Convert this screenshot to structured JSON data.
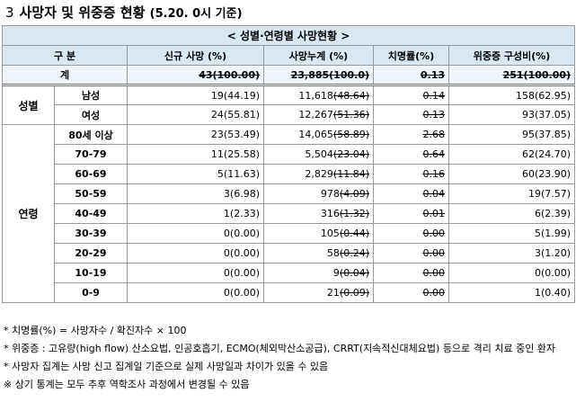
{
  "title": {
    "number": "3",
    "text": "사망자 및 위중증 현황",
    "date": "(5.20. 0시 기준)"
  },
  "table": {
    "caption": "< 성별·연령별 사망현황 >",
    "headers": [
      "구 분",
      "신규 사망 (%)",
      "사망누계 (%)",
      "치명률(%)",
      "위중증 구성비(%)"
    ],
    "total": {
      "label": "계",
      "new_deaths": "43(100.00)",
      "cum_deaths": "23,885(100.0)",
      "fatality": "0.13",
      "critical": "251(100.00)"
    },
    "sex_group": "성별",
    "sex_rows": [
      {
        "label": "남성",
        "new_a": "19",
        "new_b": "(44.19)",
        "cum_a": "11,618",
        "cum_b": "(48.64)",
        "fatality": "0.14",
        "critical": "158(62.95)"
      },
      {
        "label": "여성",
        "new_a": "24",
        "new_b": "(55.81)",
        "cum_a": "12,267",
        "cum_b": "(51.36)",
        "fatality": "0.13",
        "critical": "93(37.05)"
      }
    ],
    "age_group": "연령",
    "age_rows": [
      {
        "label": "80세 이상",
        "new_a": "23",
        "new_b": "(53.49)",
        "cum_a": "14,065",
        "cum_b": "(58.89)",
        "fatality": "2.68",
        "critical": "95(37.85)"
      },
      {
        "label": "70-79",
        "new_a": "11",
        "new_b": "(25.58)",
        "cum_a": "5,504",
        "cum_b": "(23.04)",
        "fatality": "0.64",
        "critical": "62(24.70)"
      },
      {
        "label": "60-69",
        "new_a": "5",
        "new_b": "(11.63)",
        "cum_a": "2,829",
        "cum_b": "(11.84)",
        "fatality": "0.16",
        "critical": "60(23.90)"
      },
      {
        "label": "50-59",
        "new_a": "3",
        "new_b": "(6.98)",
        "cum_a": "978",
        "cum_b": "(4.09)",
        "fatality": "0.04",
        "critical": "19(7.57)"
      },
      {
        "label": "40-49",
        "new_a": "1",
        "new_b": "(2.33)",
        "cum_a": "316",
        "cum_b": "(1.32)",
        "fatality": "0.01",
        "critical": "6(2.39)"
      },
      {
        "label": "30-39",
        "new_a": "0",
        "new_b": "(0.00)",
        "cum_a": "105",
        "cum_b": "(0.44)",
        "fatality": "0.00",
        "critical": "5(1.99)"
      },
      {
        "label": "20-29",
        "new_a": "0",
        "new_b": "(0.00)",
        "cum_a": "58",
        "cum_b": "(0.24)",
        "fatality": "0.00",
        "critical": "3(1.20)"
      },
      {
        "label": "10-19",
        "new_a": "0",
        "new_b": "(0.00)",
        "cum_a": "9",
        "cum_b": "(0.04)",
        "fatality": "0.00",
        "critical": "0(0.00)"
      },
      {
        "label": "0-9",
        "new_a": "0",
        "new_b": "(0.00)",
        "cum_a": "21",
        "cum_b": "(0.09)",
        "fatality": "0.00",
        "critical": "1(0.40)"
      }
    ]
  },
  "notes": [
    "* 치명률(%) = 사망자수 / 확진자수 × 100",
    "* 위중증 : 고유량(high flow) 산소요법, 인공호흡기, ECMO(체외막산소공급), CRRT(지속적신대체요법) 등으로 격리 치료 중인 환자",
    "* 사망자 집계는 사망 신고 집계일 기준으로 실제 사망일과 차이가 있을 수 있음",
    "※ 상기 통계는 모두 추후 역학조사 과정에서 변경될 수 있음"
  ]
}
